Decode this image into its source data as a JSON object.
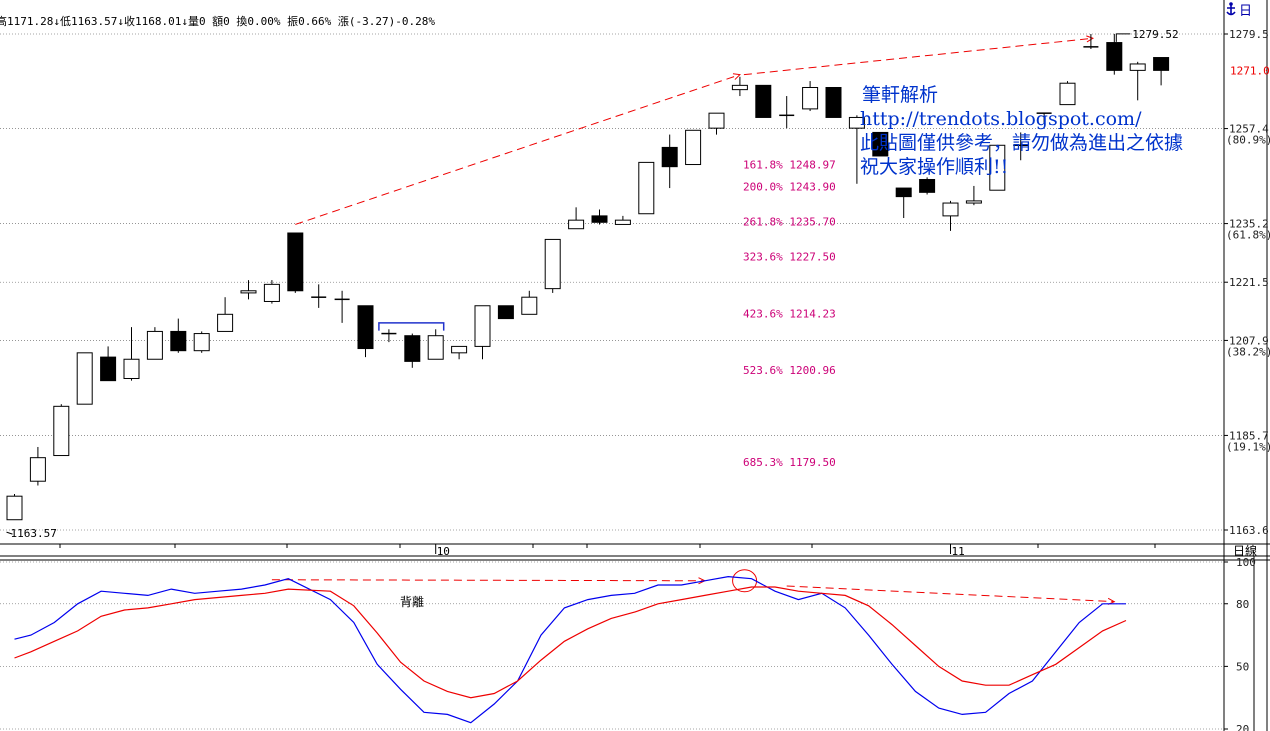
{
  "header": {
    "info": "高1171.28↓低1163.57↓收1168.01↓量0 額0 換0.00% 振0.66% 漲(-3.27)-0.28%",
    "corner_icon": "anchor-icon",
    "corner_label": "日"
  },
  "colors": {
    "fib": "#cc0077",
    "annot": "#0033cc",
    "k_line": "#0000ee",
    "d_line": "#ee0000",
    "arrow": "#ee0000",
    "bracket": "#2233cc",
    "current_price": "#ee0000"
  },
  "annotation": {
    "line1": "筆軒解析",
    "line2": "http://trendots.blogspot.com/",
    "line3": "此貼圖僅供參考，請勿做為進出之依據",
    "line4": "祝大家操作順利!!"
  },
  "lower_label": "背離",
  "chart_data": [
    {
      "type": "candlestick",
      "ylim": [
        1158,
        1283
      ],
      "price_axis": [
        {
          "value": 1279.5,
          "label": "1279.5"
        },
        {
          "value": 1257.4,
          "label": "1257.4",
          "sub": "(80.9%)"
        },
        {
          "value": 1235.2,
          "label": "1235.2",
          "sub": "(61.8%)"
        },
        {
          "value": 1221.5,
          "label": "1221.5"
        },
        {
          "value": 1207.9,
          "label": "1207.9",
          "sub": "(38.2%)"
        },
        {
          "value": 1185.7,
          "label": "1185.7",
          "sub": "(19.1%)"
        },
        {
          "value": 1163.6,
          "label": "1163.6"
        }
      ],
      "current_price": {
        "value": 1271.0,
        "label": "1271.0"
      },
      "x_labels": [
        {
          "bar": 18,
          "label": "10"
        },
        {
          "bar": 40,
          "label": "11"
        }
      ],
      "axis_unit": "日線",
      "high_label": {
        "bar": 47,
        "value": 1279.52,
        "label": "1279.52"
      },
      "low_label": {
        "bar": 0,
        "value": 1163.57,
        "label": "1163.57"
      },
      "fib_levels": [
        {
          "label": "161.8% 1248.97",
          "value": 1248.97
        },
        {
          "label": "200.0% 1243.90",
          "value": 1243.9
        },
        {
          "label": "261.8% 1235.70",
          "value": 1235.7
        },
        {
          "label": "323.6% 1227.50",
          "value": 1227.5
        },
        {
          "label": "423.6% 1214.23",
          "value": 1214.23
        },
        {
          "label": "523.6% 1200.96",
          "value": 1200.96
        },
        {
          "label": "685.3% 1179.50",
          "value": 1179.5
        }
      ],
      "candles": [
        {
          "o": 1166.0,
          "h": 1172.0,
          "l": 1166.0,
          "c": 1171.5
        },
        {
          "o": 1175.0,
          "h": 1183.0,
          "l": 1174.0,
          "c": 1180.5
        },
        {
          "o": 1181.0,
          "h": 1193.0,
          "l": 1181.0,
          "c": 1192.5
        },
        {
          "o": 1193.0,
          "h": 1205.0,
          "l": 1193.0,
          "c": 1205.0
        },
        {
          "o": 1204.0,
          "h": 1206.5,
          "l": 1198.5,
          "c": 1198.5
        },
        {
          "o": 1199.0,
          "h": 1211.0,
          "l": 1198.5,
          "c": 1203.5
        },
        {
          "o": 1203.5,
          "h": 1211.0,
          "l": 1203.5,
          "c": 1210.0
        },
        {
          "o": 1210.0,
          "h": 1213.0,
          "l": 1205.0,
          "c": 1205.5
        },
        {
          "o": 1205.5,
          "h": 1210.0,
          "l": 1205.0,
          "c": 1209.5
        },
        {
          "o": 1210.0,
          "h": 1218.0,
          "l": 1210.0,
          "c": 1214.0
        },
        {
          "o": 1219.0,
          "h": 1222.0,
          "l": 1217.5,
          "c": 1219.5
        },
        {
          "o": 1217.0,
          "h": 1222.0,
          "l": 1216.5,
          "c": 1221.0
        },
        {
          "o": 1233.0,
          "h": 1233.0,
          "l": 1219.0,
          "c": 1219.5
        },
        {
          "o": 1218.0,
          "h": 1221.0,
          "l": 1215.5,
          "c": 1218.0
        },
        {
          "o": 1217.5,
          "h": 1219.5,
          "l": 1212.0,
          "c": 1217.5
        },
        {
          "o": 1216.0,
          "h": 1216.0,
          "l": 1204.0,
          "c": 1206.0
        },
        {
          "o": 1209.5,
          "h": 1210.5,
          "l": 1207.5,
          "c": 1209.5
        },
        {
          "o": 1209.0,
          "h": 1209.5,
          "l": 1201.5,
          "c": 1203.0
        },
        {
          "o": 1203.5,
          "h": 1210.5,
          "l": 1203.5,
          "c": 1209.0
        },
        {
          "o": 1205.0,
          "h": 1206.5,
          "l": 1203.5,
          "c": 1206.5
        },
        {
          "o": 1206.5,
          "h": 1216.0,
          "l": 1203.5,
          "c": 1216.0
        },
        {
          "o": 1216.0,
          "h": 1216.0,
          "l": 1213.0,
          "c": 1213.0
        },
        {
          "o": 1214.0,
          "h": 1219.5,
          "l": 1214.0,
          "c": 1218.0
        },
        {
          "o": 1220.0,
          "h": 1231.5,
          "l": 1219.0,
          "c": 1231.5
        },
        {
          "o": 1234.0,
          "h": 1239.0,
          "l": 1234.0,
          "c": 1236.0
        },
        {
          "o": 1237.0,
          "h": 1238.5,
          "l": 1235.0,
          "c": 1235.5
        },
        {
          "o": 1235.0,
          "h": 1237.0,
          "l": 1235.0,
          "c": 1236.0
        },
        {
          "o": 1237.5,
          "h": 1249.5,
          "l": 1237.5,
          "c": 1249.5
        },
        {
          "o": 1253.0,
          "h": 1256.0,
          "l": 1243.5,
          "c": 1248.5
        },
        {
          "o": 1249.0,
          "h": 1257.0,
          "l": 1249.0,
          "c": 1257.0
        },
        {
          "o": 1257.5,
          "h": 1261.0,
          "l": 1256.0,
          "c": 1261.0
        },
        {
          "o": 1266.5,
          "h": 1269.5,
          "l": 1265.0,
          "c": 1267.5
        },
        {
          "o": 1267.5,
          "h": 1267.5,
          "l": 1260.0,
          "c": 1260.0
        },
        {
          "o": 1260.5,
          "h": 1265.0,
          "l": 1257.5,
          "c": 1260.5
        },
        {
          "o": 1262.0,
          "h": 1268.5,
          "l": 1261.5,
          "c": 1267.0
        },
        {
          "o": 1267.0,
          "h": 1267.0,
          "l": 1260.0,
          "c": 1260.0
        },
        {
          "o": 1257.5,
          "h": 1260.5,
          "l": 1244.5,
          "c": 1260.0
        },
        {
          "o": 1256.5,
          "h": 1256.5,
          "l": 1251.0,
          "c": 1251.0
        },
        {
          "o": 1243.5,
          "h": 1243.5,
          "l": 1236.5,
          "c": 1241.5
        },
        {
          "o": 1245.5,
          "h": 1246.0,
          "l": 1242.0,
          "c": 1242.5
        },
        {
          "o": 1237.0,
          "h": 1240.5,
          "l": 1233.5,
          "c": 1240.0
        },
        {
          "o": 1240.0,
          "h": 1244.0,
          "l": 1239.5,
          "c": 1240.5
        },
        {
          "o": 1243.0,
          "h": 1253.5,
          "l": 1243.0,
          "c": 1253.5
        },
        {
          "o": 1253.5,
          "h": 1256.5,
          "l": 1250.0,
          "c": 1253.5
        },
        {
          "o": 1261.0,
          "h": 1261.0,
          "l": 1258.5,
          "c": 1261.0
        },
        {
          "o": 1263.0,
          "h": 1268.5,
          "l": 1263.0,
          "c": 1268.0
        },
        {
          "o": 1276.5,
          "h": 1279.5,
          "l": 1276.0,
          "c": 1276.5
        },
        {
          "o": 1277.5,
          "h": 1279.52,
          "l": 1270.0,
          "c": 1271.0
        },
        {
          "o": 1271.0,
          "h": 1273.0,
          "l": 1264.0,
          "c": 1272.5
        },
        {
          "o": 1274.0,
          "h": 1274.0,
          "l": 1267.5,
          "c": 1271.0
        }
      ]
    },
    {
      "type": "line",
      "ylim": [
        20,
        100
      ],
      "y_ticks": [
        {
          "value": 100,
          "label": "100"
        },
        {
          "value": 80,
          "label": "80"
        },
        {
          "value": 50,
          "label": "50"
        },
        {
          "value": 20,
          "label": "20"
        }
      ],
      "x": [
        0,
        0.7,
        1.7,
        2.7,
        3.7,
        4.7,
        5.7,
        6.7,
        7.7,
        8.7,
        9.7,
        10.7,
        11.7,
        13.5,
        14.5,
        15.5,
        16.5,
        17.5,
        18.5,
        19.5,
        20.5,
        21.5,
        22.5,
        23.5,
        24.5,
        25.5,
        26.5,
        27.5,
        28.5,
        29.5,
        30.5,
        31.5,
        32.5,
        33.5,
        34.5,
        35.5,
        36.5,
        37.5,
        38.5,
        39.5,
        40.5,
        41.5,
        42.5,
        43.5,
        44.5,
        45.5,
        46.5,
        47.5
      ],
      "series": [
        {
          "values": [
            63,
            65,
            71,
            80,
            86,
            85,
            84,
            87,
            85,
            86,
            87,
            89,
            92,
            82,
            71,
            51,
            39,
            28,
            27,
            23,
            32,
            43,
            65,
            78,
            82,
            84,
            85,
            89,
            89,
            91,
            93,
            92,
            86,
            82,
            85,
            78,
            65,
            51,
            38,
            30,
            27,
            28,
            37,
            43,
            57,
            71,
            80,
            80
          ]
        },
        {
          "values": [
            54,
            57,
            62,
            67,
            74,
            77,
            78,
            80,
            82,
            83,
            84,
            85,
            87,
            86,
            79,
            66,
            52,
            43,
            38,
            35,
            37,
            43,
            53,
            62,
            68,
            73,
            76,
            80,
            82,
            84,
            86,
            88,
            88,
            86,
            85,
            84,
            79,
            70,
            60,
            50,
            43,
            41,
            41,
            46,
            51,
            59,
            67,
            72
          ]
        }
      ]
    }
  ]
}
